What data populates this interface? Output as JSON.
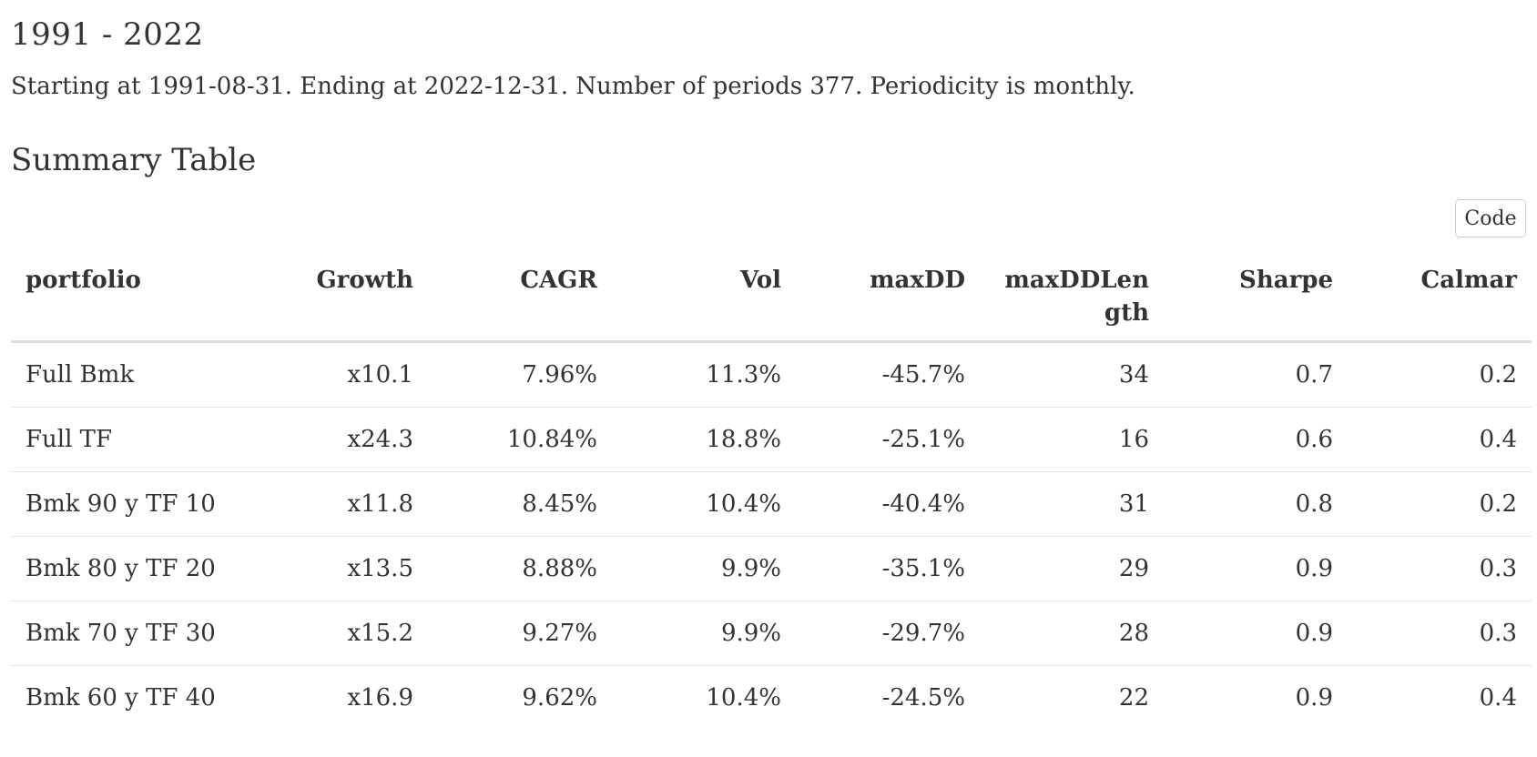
{
  "period_title": "1991 - 2022",
  "period_description": "Starting at 1991-08-31. Ending at 2022-12-31. Number of periods 377. Periodicity is monthly.",
  "section_title": "Summary Table",
  "code_button_label": "Code",
  "table": {
    "headers": [
      "portfolio",
      "Growth",
      "CAGR",
      "Vol",
      "maxDD",
      "maxDDLength",
      "Sharpe",
      "Calmar"
    ],
    "rows": [
      [
        "Full Bmk",
        "x10.1",
        "7.96%",
        "11.3%",
        "-45.7%",
        "34",
        "0.7",
        "0.2"
      ],
      [
        "Full TF",
        "x24.3",
        "10.84%",
        "18.8%",
        "-25.1%",
        "16",
        "0.6",
        "0.4"
      ],
      [
        "Bmk 90 y TF 10",
        "x11.8",
        "8.45%",
        "10.4%",
        "-40.4%",
        "31",
        "0.8",
        "0.2"
      ],
      [
        "Bmk 80 y TF 20",
        "x13.5",
        "8.88%",
        "9.9%",
        "-35.1%",
        "29",
        "0.9",
        "0.3"
      ],
      [
        "Bmk 70 y TF 30",
        "x15.2",
        "9.27%",
        "9.9%",
        "-29.7%",
        "28",
        "0.9",
        "0.3"
      ],
      [
        "Bmk 60 y TF 40",
        "x16.9",
        "9.62%",
        "10.4%",
        "-24.5%",
        "22",
        "0.9",
        "0.4"
      ]
    ]
  }
}
